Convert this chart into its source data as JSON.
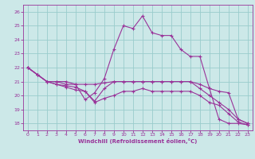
{
  "xlabel": "Windchill (Refroidissement éolien,°C)",
  "background_color": "#cce8e8",
  "line_color": "#993399",
  "grid_color": "#99cccc",
  "xlim": [
    -0.5,
    23.5
  ],
  "ylim": [
    17.5,
    26.5
  ],
  "yticks": [
    18,
    19,
    20,
    21,
    22,
    23,
    24,
    25,
    26
  ],
  "xticks": [
    0,
    1,
    2,
    3,
    4,
    5,
    6,
    7,
    8,
    9,
    10,
    11,
    12,
    13,
    14,
    15,
    16,
    17,
    18,
    19,
    20,
    21,
    22,
    23
  ],
  "series": [
    {
      "x": [
        0,
        1,
        2,
        3,
        4,
        5,
        6,
        7,
        8,
        9,
        10,
        11,
        12,
        13,
        14,
        15,
        16,
        17,
        18,
        19,
        20,
        21,
        22,
        23
      ],
      "y": [
        22.0,
        21.5,
        21.0,
        21.0,
        21.0,
        20.8,
        19.7,
        20.2,
        21.2,
        23.3,
        25.0,
        24.8,
        25.7,
        24.5,
        24.3,
        24.3,
        23.3,
        22.8,
        22.8,
        20.5,
        18.3,
        18.0,
        18.0,
        17.9
      ]
    },
    {
      "x": [
        0,
        1,
        2,
        3,
        4,
        5,
        6,
        7,
        8,
        9,
        10,
        11,
        12,
        13,
        14,
        15,
        16,
        17,
        18,
        19,
        20,
        21,
        22,
        23
      ],
      "y": [
        22.0,
        21.5,
        21.0,
        21.0,
        20.8,
        20.8,
        20.8,
        20.8,
        20.9,
        21.0,
        21.0,
        21.0,
        21.0,
        21.0,
        21.0,
        21.0,
        21.0,
        21.0,
        20.8,
        20.5,
        20.3,
        20.2,
        18.3,
        18.0
      ]
    },
    {
      "x": [
        0,
        1,
        2,
        3,
        4,
        5,
        6,
        7,
        8,
        9,
        10,
        11,
        12,
        13,
        14,
        15,
        16,
        17,
        18,
        19,
        20,
        21,
        22,
        23
      ],
      "y": [
        22.0,
        21.5,
        21.0,
        20.8,
        20.7,
        20.6,
        20.3,
        19.6,
        20.5,
        21.0,
        21.0,
        21.0,
        21.0,
        21.0,
        21.0,
        21.0,
        21.0,
        21.0,
        20.5,
        20.0,
        19.5,
        19.0,
        18.3,
        18.0
      ]
    },
    {
      "x": [
        0,
        1,
        2,
        3,
        4,
        5,
        6,
        7,
        8,
        9,
        10,
        11,
        12,
        13,
        14,
        15,
        16,
        17,
        18,
        19,
        20,
        21,
        22,
        23
      ],
      "y": [
        22.0,
        21.5,
        21.0,
        20.8,
        20.6,
        20.4,
        20.3,
        19.5,
        19.8,
        20.0,
        20.3,
        20.3,
        20.5,
        20.3,
        20.3,
        20.3,
        20.3,
        20.3,
        20.0,
        19.5,
        19.3,
        18.7,
        18.1,
        17.9
      ]
    }
  ]
}
